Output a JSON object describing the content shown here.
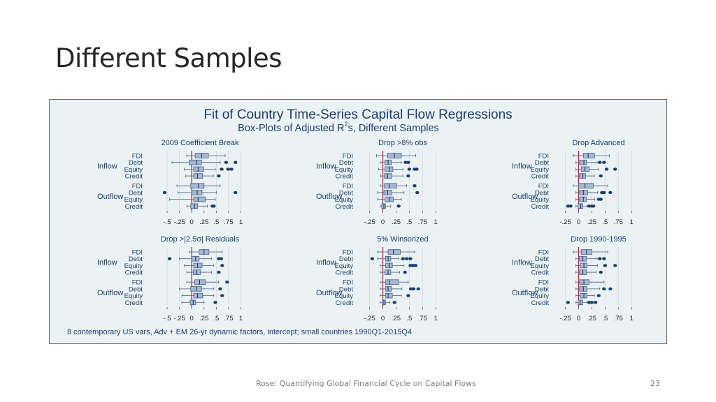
{
  "slide": {
    "title": "Different Samples",
    "footer": "Rose: Quantifying Global Financial Cycle on Capital Flows",
    "page_number": "23"
  },
  "colors": {
    "background": "#eaf2f3",
    "title_text": "#1b3d6d",
    "box_fill": "#a5b8d2",
    "box_stroke": "#4b5f84",
    "median": "#1d3a6b",
    "outlier": "#1b3d6d",
    "reference_line": "#b03037",
    "grid": "#d0d8da"
  },
  "chart_data": {
    "type": "box",
    "title": "Fit of Country Time-Series Capital Flow Regressions",
    "subtitle_prefix": "Box-Plots of Adjusted R",
    "subtitle_sup": "2",
    "subtitle_suffix": "s, Different Samples",
    "note": "8 contemporary US vars, Adv + EM 26-yr dynamic factors, intercept; small countries 1990Q1-2015Q4",
    "reference_line": 0,
    "direction_labels": [
      "Inflow",
      "Outflow"
    ],
    "category_labels": [
      "FDI",
      "Debt",
      "Equity",
      "Credit"
    ],
    "panels": [
      {
        "title": "2009 Coefficient Break",
        "xlim": [
          -0.6,
          1.05
        ],
        "ticks": [
          -0.5,
          -0.25,
          0,
          0.25,
          0.5,
          0.75,
          1
        ],
        "tick_labels": [
          "-.5",
          "-.25",
          "0",
          ".25",
          ".5",
          ".75",
          "1"
        ],
        "inflow": [
          {
            "label": "FDI",
            "wmin": -0.1,
            "q1": 0.07,
            "med": 0.2,
            "q3": 0.34,
            "wmax": 0.68,
            "out": []
          },
          {
            "label": "Debt",
            "wmin": -0.4,
            "q1": -0.05,
            "med": 0.1,
            "q3": 0.2,
            "wmax": 0.58,
            "out": [
              0.7,
              0.89
            ]
          },
          {
            "label": "Equity",
            "wmin": -0.15,
            "q1": 0.04,
            "med": 0.13,
            "q3": 0.24,
            "wmax": 0.48,
            "out": [
              0.61,
              0.74,
              0.81
            ]
          },
          {
            "label": "Credit",
            "wmin": -0.12,
            "q1": 0.04,
            "med": 0.12,
            "q3": 0.22,
            "wmax": 0.44,
            "out": [
              0.55
            ]
          }
        ],
        "outflow": [
          {
            "label": "FDI",
            "wmin": -0.3,
            "q1": -0.02,
            "med": 0.14,
            "q3": 0.25,
            "wmax": 0.58,
            "out": []
          },
          {
            "label": "Debt",
            "wmin": -0.28,
            "q1": 0.0,
            "med": 0.11,
            "q3": 0.21,
            "wmax": 0.5,
            "out": [
              -0.55,
              0.89
            ]
          },
          {
            "label": "Equity",
            "wmin": -0.45,
            "q1": 0.04,
            "med": 0.13,
            "q3": 0.28,
            "wmax": 0.48,
            "out": []
          },
          {
            "label": "Credit",
            "wmin": -0.1,
            "q1": -0.02,
            "med": 0.06,
            "q3": 0.12,
            "wmax": 0.32,
            "out": [
              0.42,
              0.45
            ]
          }
        ]
      },
      {
        "title": "Drop >8% obs",
        "xlim": [
          -0.35,
          1.05
        ],
        "ticks": [
          -0.25,
          0,
          0.25,
          0.5,
          0.75,
          1
        ],
        "tick_labels": [
          "-.25",
          "0",
          ".25",
          ".5",
          ".75",
          "1"
        ],
        "inflow": [
          {
            "label": "FDI",
            "wmin": -0.12,
            "q1": 0.09,
            "med": 0.22,
            "q3": 0.35,
            "wmax": 0.62,
            "out": []
          },
          {
            "label": "Debt",
            "wmin": -0.05,
            "q1": 0.04,
            "med": 0.1,
            "q3": 0.16,
            "wmax": 0.35,
            "out": [
              0.43,
              0.48
            ]
          },
          {
            "label": "Equity",
            "wmin": -0.08,
            "q1": 0.04,
            "med": 0.12,
            "q3": 0.19,
            "wmax": 0.38,
            "out": [
              0.5,
              0.6,
              0.64
            ]
          },
          {
            "label": "Credit",
            "wmin": -0.04,
            "q1": 0.03,
            "med": 0.09,
            "q3": 0.17,
            "wmax": 0.38,
            "out": [
              0.48
            ]
          }
        ],
        "outflow": [
          {
            "label": "FDI",
            "wmin": -0.05,
            "q1": 0.03,
            "med": 0.12,
            "q3": 0.26,
            "wmax": 0.45,
            "out": [
              0.6
            ]
          },
          {
            "label": "Debt",
            "wmin": -0.1,
            "q1": 0.02,
            "med": 0.09,
            "q3": 0.17,
            "wmax": 0.4,
            "out": [
              0.65
            ]
          },
          {
            "label": "Equity",
            "wmin": -0.1,
            "q1": 0.04,
            "med": 0.12,
            "q3": 0.2,
            "wmax": 0.35,
            "out": []
          },
          {
            "label": "Credit",
            "wmin": -0.05,
            "q1": -0.02,
            "med": 0.02,
            "q3": 0.05,
            "wmax": 0.15,
            "out": [
              0.3
            ]
          }
        ]
      },
      {
        "title": "Drop Advanced",
        "xlim": [
          -0.35,
          1.05
        ],
        "ticks": [
          -0.25,
          0,
          0.25,
          0.5,
          0.75,
          1
        ],
        "tick_labels": [
          "-.25",
          "0",
          ".25",
          ".5",
          ".75",
          "1"
        ],
        "inflow": [
          {
            "label": "FDI",
            "wmin": -0.1,
            "q1": 0.09,
            "med": 0.18,
            "q3": 0.3,
            "wmax": 0.58,
            "out": []
          },
          {
            "label": "Debt",
            "wmin": -0.05,
            "q1": 0.02,
            "med": 0.1,
            "q3": 0.15,
            "wmax": 0.35,
            "out": [
              0.4,
              0.48
            ]
          },
          {
            "label": "Equity",
            "wmin": -0.05,
            "q1": 0.05,
            "med": 0.12,
            "q3": 0.2,
            "wmax": 0.38,
            "out": [
              0.53,
              0.69
            ]
          },
          {
            "label": "Credit",
            "wmin": -0.05,
            "q1": 0.02,
            "med": 0.08,
            "q3": 0.13,
            "wmax": 0.3,
            "out": [
              0.42
            ]
          }
        ],
        "outflow": [
          {
            "label": "FDI",
            "wmin": -0.1,
            "q1": 0.0,
            "med": 0.12,
            "q3": 0.28,
            "wmax": 0.55,
            "out": []
          },
          {
            "label": "Debt",
            "wmin": -0.05,
            "q1": 0.02,
            "med": 0.09,
            "q3": 0.17,
            "wmax": 0.36,
            "out": [
              0.44,
              0.48,
              0.6
            ]
          },
          {
            "label": "Equity",
            "wmin": -0.05,
            "q1": 0.02,
            "med": 0.09,
            "q3": 0.15,
            "wmax": 0.3,
            "out": [
              0.38,
              0.42
            ]
          },
          {
            "label": "Credit",
            "wmin": -0.05,
            "q1": -0.01,
            "med": 0.04,
            "q3": 0.08,
            "wmax": 0.16,
            "out": [
              -0.2,
              -0.15,
              0.2,
              0.25,
              0.28
            ]
          }
        ]
      },
      {
        "title": "Drop >|2.5σ| Residuals",
        "xlim": [
          -0.6,
          1.05
        ],
        "ticks": [
          -0.5,
          -0.25,
          0,
          0.25,
          0.5,
          0.75,
          1
        ],
        "tick_labels": [
          "-.5",
          "-.25",
          "0",
          ".25",
          ".5",
          ".75",
          "1"
        ],
        "inflow": [
          {
            "label": "FDI",
            "wmin": -0.05,
            "q1": 0.15,
            "med": 0.25,
            "q3": 0.35,
            "wmax": 0.62,
            "out": []
          },
          {
            "label": "Debt",
            "wmin": -0.25,
            "q1": 0.0,
            "med": 0.08,
            "q3": 0.15,
            "wmax": 0.4,
            "out": [
              -0.45,
              0.55,
              0.6
            ]
          },
          {
            "label": "Equity",
            "wmin": -0.15,
            "q1": 0.04,
            "med": 0.12,
            "q3": 0.21,
            "wmax": 0.45,
            "out": [
              0.62
            ]
          },
          {
            "label": "Credit",
            "wmin": -0.1,
            "q1": 0.03,
            "med": 0.1,
            "q3": 0.18,
            "wmax": 0.4,
            "out": [
              0.55
            ]
          }
        ],
        "outflow": [
          {
            "label": "FDI",
            "wmin": -0.1,
            "q1": 0.06,
            "med": 0.16,
            "q3": 0.28,
            "wmax": 0.55,
            "out": [
              0.72
            ]
          },
          {
            "label": "Debt",
            "wmin": -0.25,
            "q1": -0.02,
            "med": 0.1,
            "q3": 0.2,
            "wmax": 0.45,
            "out": [
              0.58
            ]
          },
          {
            "label": "Equity",
            "wmin": -0.2,
            "q1": 0.04,
            "med": 0.12,
            "q3": 0.22,
            "wmax": 0.45,
            "out": [
              0.62
            ]
          },
          {
            "label": "Credit",
            "wmin": -0.2,
            "q1": -0.03,
            "med": 0.03,
            "q3": 0.08,
            "wmax": 0.25,
            "out": [
              0.48
            ]
          }
        ]
      },
      {
        "title": "5% Winsorized",
        "xlim": [
          -0.35,
          1.05
        ],
        "ticks": [
          -0.25,
          0,
          0.25,
          0.5,
          0.75,
          1
        ],
        "tick_labels": [
          "-.25",
          "0",
          ".25",
          ".5",
          ".75",
          "1"
        ],
        "inflow": [
          {
            "label": "FDI",
            "wmin": -0.1,
            "q1": 0.1,
            "med": 0.2,
            "q3": 0.33,
            "wmax": 0.6,
            "out": []
          },
          {
            "label": "Debt",
            "wmin": -0.1,
            "q1": 0.05,
            "med": 0.1,
            "q3": 0.15,
            "wmax": 0.3,
            "out": [
              -0.2,
              0.38,
              0.45,
              0.52
            ]
          },
          {
            "label": "Equity",
            "wmin": -0.05,
            "q1": 0.05,
            "med": 0.12,
            "q3": 0.18,
            "wmax": 0.4,
            "out": [
              0.52,
              0.55,
              0.58,
              0.62
            ]
          },
          {
            "label": "Credit",
            "wmin": -0.05,
            "q1": 0.04,
            "med": 0.1,
            "q3": 0.15,
            "wmax": 0.32,
            "out": [
              0.42
            ]
          }
        ],
        "outflow": [
          {
            "label": "FDI",
            "wmin": -0.05,
            "q1": 0.05,
            "med": 0.12,
            "q3": 0.3,
            "wmax": 0.48,
            "out": []
          },
          {
            "label": "Debt",
            "wmin": -0.05,
            "q1": 0.05,
            "med": 0.1,
            "q3": 0.16,
            "wmax": 0.36,
            "out": [
              0.53,
              0.58,
              0.67
            ]
          },
          {
            "label": "Equity",
            "wmin": -0.05,
            "q1": 0.05,
            "med": 0.1,
            "q3": 0.18,
            "wmax": 0.35,
            "out": [
              0.48
            ]
          },
          {
            "label": "Credit",
            "wmin": -0.05,
            "q1": -0.01,
            "med": 0.02,
            "q3": 0.05,
            "wmax": 0.13,
            "out": [
              0.22
            ]
          }
        ]
      },
      {
        "title": "Drop 1990-1995",
        "xlim": [
          -0.35,
          1.05
        ],
        "ticks": [
          -0.25,
          0,
          0.25,
          0.5,
          0.75,
          1
        ],
        "tick_labels": [
          "-.25",
          "0",
          ".25",
          ".5",
          ".75",
          "1"
        ],
        "inflow": [
          {
            "label": "FDI",
            "wmin": -0.1,
            "q1": 0.05,
            "med": 0.15,
            "q3": 0.25,
            "wmax": 0.55,
            "out": []
          },
          {
            "label": "Debt",
            "wmin": -0.05,
            "q1": 0.01,
            "med": 0.08,
            "q3": 0.15,
            "wmax": 0.35,
            "out": [
              0.4,
              0.48
            ]
          },
          {
            "label": "Equity",
            "wmin": -0.05,
            "q1": 0.03,
            "med": 0.1,
            "q3": 0.16,
            "wmax": 0.36,
            "out": [
              0.5,
              0.69
            ]
          },
          {
            "label": "Credit",
            "wmin": -0.05,
            "q1": 0.02,
            "med": 0.08,
            "q3": 0.15,
            "wmax": 0.33,
            "out": [
              0.42
            ]
          }
        ],
        "outflow": [
          {
            "label": "FDI",
            "wmin": -0.05,
            "q1": 0.02,
            "med": 0.1,
            "q3": 0.2,
            "wmax": 0.48,
            "out": []
          },
          {
            "label": "Debt",
            "wmin": -0.05,
            "q1": 0.02,
            "med": 0.09,
            "q3": 0.16,
            "wmax": 0.4,
            "out": [
              0.48,
              0.6
            ]
          },
          {
            "label": "Equity",
            "wmin": -0.05,
            "q1": 0.03,
            "med": 0.1,
            "q3": 0.16,
            "wmax": 0.3,
            "out": [
              0.38
            ]
          },
          {
            "label": "Credit",
            "wmin": -0.05,
            "q1": -0.01,
            "med": 0.03,
            "q3": 0.08,
            "wmax": 0.16,
            "out": [
              -0.2,
              0.2,
              0.25,
              0.32
            ]
          }
        ]
      }
    ]
  }
}
